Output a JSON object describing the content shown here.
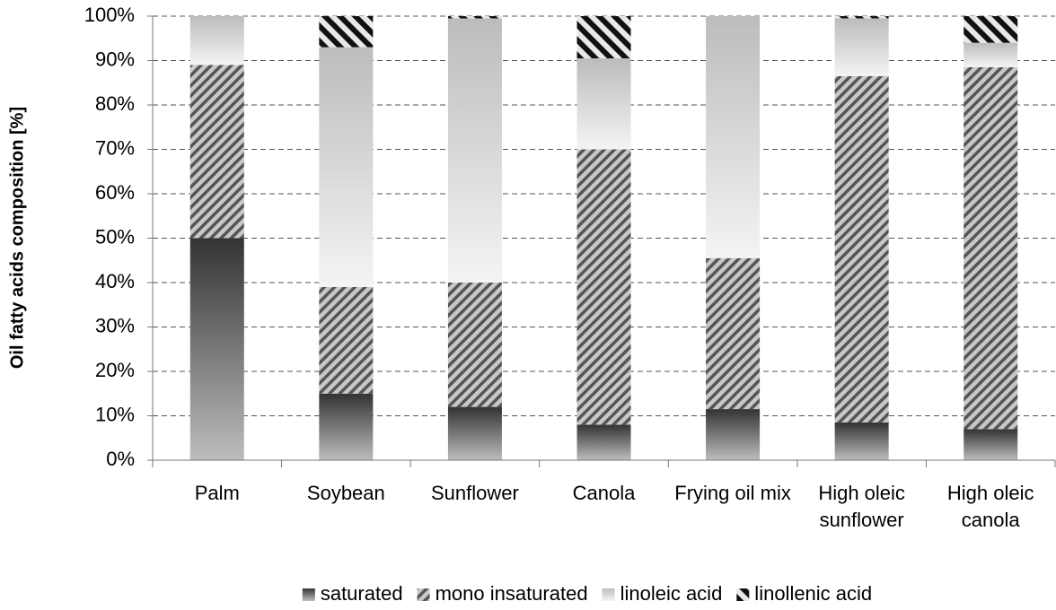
{
  "chart_data": {
    "type": "stacked_bar",
    "y_label": "Oil fatty acids composition [%]",
    "categories": [
      "Palm",
      "Soybean",
      "Sunflower",
      "Canola",
      "Frying oil mix",
      "High oleic sunflower",
      "High oleic canola"
    ],
    "series": [
      {
        "name": "saturated",
        "color": "#444444",
        "pattern": "dark-gradient",
        "values": [
          50,
          15,
          12,
          8,
          11.5,
          8.5,
          7
        ]
      },
      {
        "name": "mono insaturated",
        "color": "#555555",
        "pattern": "hatch",
        "values": [
          39,
          24,
          28,
          62,
          34,
          78,
          81.5
        ]
      },
      {
        "name": "linoleic acid",
        "color": "#bbbbbb",
        "pattern": "light-gradient",
        "values": [
          11,
          54,
          59.5,
          20.5,
          54.5,
          13,
          5.5
        ]
      },
      {
        "name": "linollenic acid",
        "color": "#111111",
        "pattern": "thick-hatch",
        "values": [
          0,
          7,
          0.5,
          9.5,
          0,
          0.5,
          6
        ]
      }
    ],
    "ylim": [
      0,
      100
    ],
    "yticks": [
      {
        "value": 0,
        "label": "0%"
      },
      {
        "value": 10,
        "label": "10%"
      },
      {
        "value": 20,
        "label": "20%"
      },
      {
        "value": 30,
        "label": "30%"
      },
      {
        "value": 40,
        "label": "40%"
      },
      {
        "value": 50,
        "label": "50%"
      },
      {
        "value": 60,
        "label": "60%"
      },
      {
        "value": 70,
        "label": "70%"
      },
      {
        "value": 80,
        "label": "80%"
      },
      {
        "value": 90,
        "label": "90%"
      },
      {
        "value": 100,
        "label": "100%"
      }
    ],
    "grid": true,
    "legend": "bottom"
  }
}
